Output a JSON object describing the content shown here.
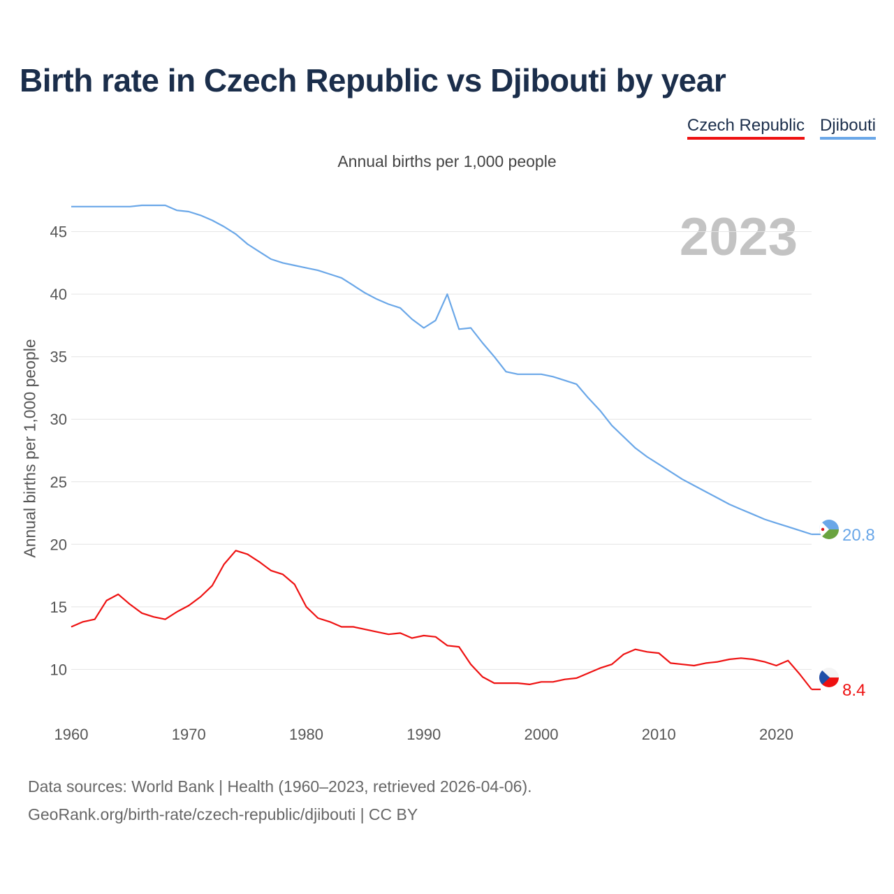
{
  "title": "Birth rate in Czech Republic vs Djibouti by year",
  "subtitle": "Annual births per 1,000 people",
  "year_label": "2023",
  "legend": [
    {
      "label": "Czech Republic",
      "color": "#ee1111"
    },
    {
      "label": "Djibouti",
      "color": "#6aa7e8"
    }
  ],
  "sources": {
    "line1": "Data sources: World Bank | Health (1960–2023, retrieved 2026-04-06).",
    "line2": "GeoRank.org/birth-rate/czech-republic/djibouti | CC BY"
  },
  "chart_data": {
    "type": "line",
    "title": "Birth rate in Czech Republic vs Djibouti by year",
    "xlabel": "",
    "ylabel": "Annual births per 1,000 people",
    "xlim": [
      1960,
      2023
    ],
    "ylim": [
      6,
      49
    ],
    "grid": true,
    "x_ticks": [
      1960,
      1970,
      1980,
      1990,
      2000,
      2010,
      2020
    ],
    "y_ticks": [
      10,
      15,
      20,
      25,
      30,
      35,
      40,
      45
    ],
    "x": [
      1960,
      1961,
      1962,
      1963,
      1964,
      1965,
      1966,
      1967,
      1968,
      1969,
      1970,
      1971,
      1972,
      1973,
      1974,
      1975,
      1976,
      1977,
      1978,
      1979,
      1980,
      1981,
      1982,
      1983,
      1984,
      1985,
      1986,
      1987,
      1988,
      1989,
      1990,
      1991,
      1992,
      1993,
      1994,
      1995,
      1996,
      1997,
      1998,
      1999,
      2000,
      2001,
      2002,
      2003,
      2004,
      2005,
      2006,
      2007,
      2008,
      2009,
      2010,
      2011,
      2012,
      2013,
      2014,
      2015,
      2016,
      2017,
      2018,
      2019,
      2020,
      2021,
      2022,
      2023
    ],
    "series": [
      {
        "name": "Czech Republic",
        "color": "#ee1111",
        "end_label": "8.4",
        "values": [
          13.4,
          13.8,
          14.0,
          15.5,
          16.0,
          15.2,
          14.5,
          14.2,
          14.0,
          14.6,
          15.1,
          15.8,
          16.7,
          18.4,
          19.5,
          19.2,
          18.6,
          17.9,
          17.6,
          16.8,
          15.0,
          14.1,
          13.8,
          13.4,
          13.4,
          13.2,
          13.0,
          12.8,
          12.9,
          12.5,
          12.7,
          12.6,
          11.9,
          11.8,
          10.4,
          9.4,
          8.9,
          8.9,
          8.9,
          8.8,
          9.0,
          9.0,
          9.2,
          9.3,
          9.7,
          10.1,
          10.4,
          11.2,
          11.6,
          11.4,
          11.3,
          10.5,
          10.4,
          10.3,
          10.5,
          10.6,
          10.8,
          10.9,
          10.8,
          10.6,
          10.3,
          10.7,
          9.6,
          8.4
        ]
      },
      {
        "name": "Djibouti",
        "color": "#6aa7e8",
        "end_label": "20.8",
        "values": [
          47.0,
          47.0,
          47.0,
          47.0,
          47.0,
          47.0,
          47.1,
          47.1,
          47.1,
          46.7,
          46.6,
          46.3,
          45.9,
          45.4,
          44.8,
          44.0,
          43.4,
          42.8,
          42.5,
          42.3,
          42.1,
          41.9,
          41.6,
          41.3,
          40.7,
          40.1,
          39.6,
          39.2,
          38.9,
          38.0,
          37.3,
          37.9,
          40.0,
          37.2,
          37.3,
          36.1,
          35.0,
          33.8,
          33.6,
          33.6,
          33.6,
          33.4,
          33.1,
          32.8,
          31.7,
          30.7,
          29.5,
          28.6,
          27.7,
          27.0,
          26.4,
          25.8,
          25.2,
          24.7,
          24.2,
          23.7,
          23.2,
          22.8,
          22.4,
          22.0,
          21.7,
          21.4,
          21.1,
          20.8
        ]
      }
    ]
  }
}
